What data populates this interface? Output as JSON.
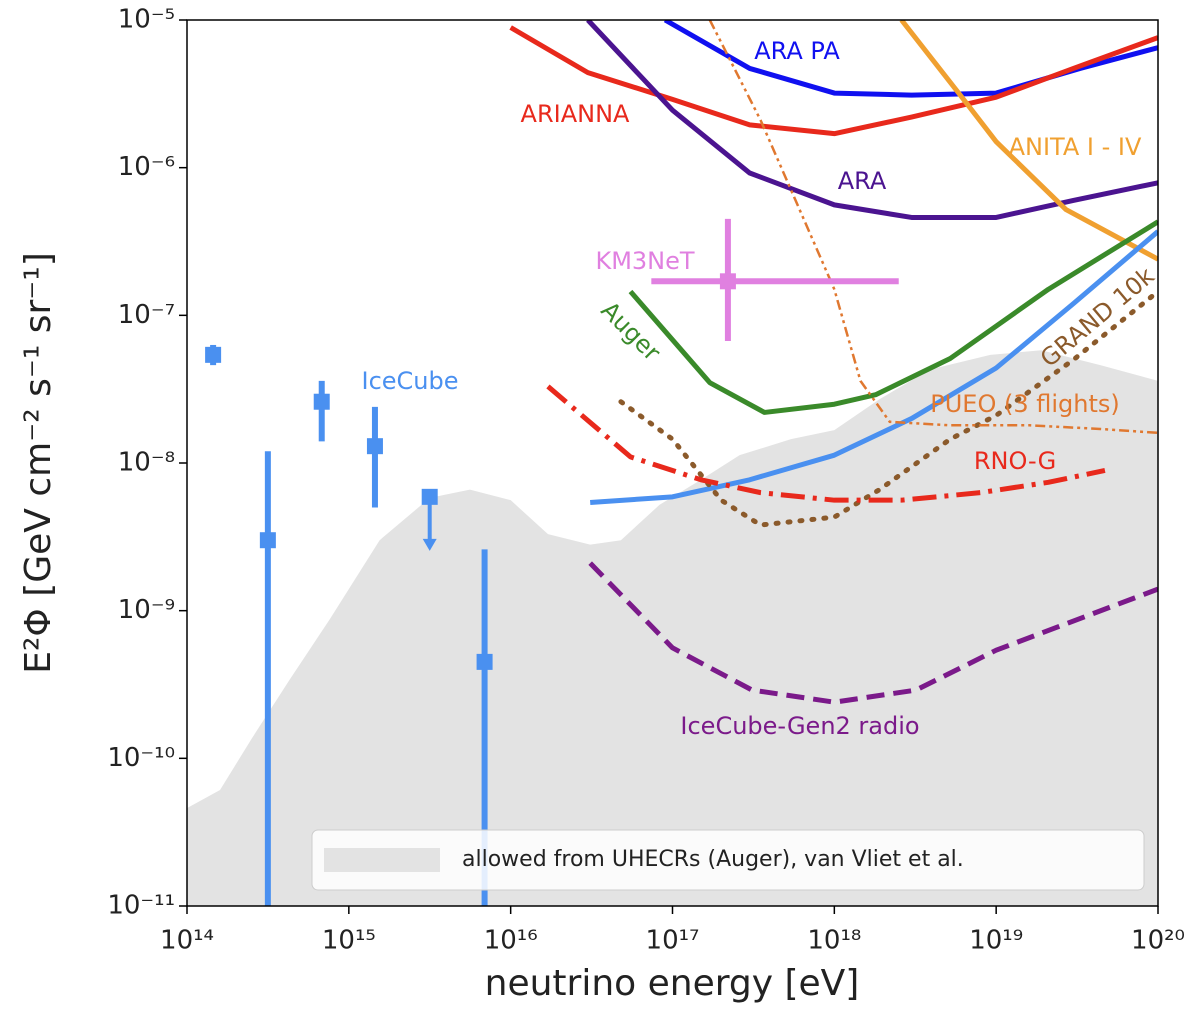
{
  "chart_data": {
    "type": "line",
    "xlabel": "neutrino energy [eV]",
    "ylabel": "E²Φ [GeV cm⁻² s⁻¹ sr⁻¹]",
    "xlog": true,
    "ylog": true,
    "xlim": [
      100000000000000.0,
      1e+20
    ],
    "ylim": [
      1e-11,
      1e-05
    ],
    "xticks": [
      {
        "value": 100000000000000.0,
        "label": "10¹⁴"
      },
      {
        "value": 1000000000000000.0,
        "label": "10¹⁵"
      },
      {
        "value": 1e+16,
        "label": "10¹⁶"
      },
      {
        "value": 1e+17,
        "label": "10¹⁷"
      },
      {
        "value": 1e+18,
        "label": "10¹⁸"
      },
      {
        "value": 1e+19,
        "label": "10¹⁹"
      },
      {
        "value": 1e+20,
        "label": "10²⁰"
      }
    ],
    "yticks": [
      {
        "value": 1e-11,
        "label": "10⁻¹¹"
      },
      {
        "value": 1e-10,
        "label": "10⁻¹⁰"
      },
      {
        "value": 1e-09,
        "label": "10⁻⁹"
      },
      {
        "value": 1e-08,
        "label": "10⁻⁸"
      },
      {
        "value": 1e-07,
        "label": "10⁻⁷"
      },
      {
        "value": 1e-06,
        "label": "10⁻⁶"
      },
      {
        "value": 1e-05,
        "label": "10⁻⁵"
      }
    ],
    "legend": "lower right",
    "series": [
      {
        "name": "allowed from UHECRs (Auger), van Vliet et al.",
        "color": "#e3e3e3",
        "style": "area",
        "x": [
          100000000000000.0,
          160000000000000.0,
          250000000000000.0,
          430000000000000.0,
          760000000000000.0,
          1550000000000000.0,
          3160000000000000.0,
          5600000000000000.0,
          1e+16,
          1.7e+16,
          3.1e+16,
          4.8e+16,
          8.3e+16,
          1.5e+17,
          2.6e+17,
          5.4e+17,
          1e+18,
          1.9e+18,
          3.9e+18,
          9.2e+18,
          1.9e+19,
          4.4e+19,
          1e+20
        ],
        "values": [
          4.6e-11,
          6.1e-11,
          1.35e-10,
          3.4e-10,
          8.7e-10,
          3e-09,
          5.8e-09,
          6.6e-09,
          5.6e-09,
          3.3e-09,
          2.8e-09,
          3e-09,
          5.2e-09,
          7.7e-09,
          1.13e-08,
          1.45e-08,
          1.67e-08,
          2.7e-08,
          4.3e-08,
          5.4e-08,
          5.8e-08,
          4.6e-08,
          3.6e-08
        ]
      },
      {
        "name": "ARA PA",
        "color": "#1010f0",
        "style": "solid",
        "x": [
          9e+16,
          3e+17,
          1e+18,
          3e+18,
          1e+19,
          3.3e+19,
          1e+20
        ],
        "values": [
          1e-05,
          4.7e-06,
          3.2e-06,
          3.1e-06,
          3.2e-06,
          4.7e-06,
          6.5e-06
        ]
      },
      {
        "name": "ARIANNA",
        "color": "#e8291c",
        "style": "solid",
        "x": [
          1e+16,
          3e+16,
          1e+17,
          3e+17,
          1e+18,
          3e+18,
          1e+19,
          3e+19,
          1e+20
        ],
        "values": [
          8.9e-06,
          4.4e-06,
          2.9e-06,
          1.95e-06,
          1.7e-06,
          2.2e-06,
          3e-06,
          4.7e-06,
          7.6e-06
        ]
      },
      {
        "name": "ARA",
        "color": "#4b1490",
        "style": "solid",
        "x": [
          3e+16,
          1e+17,
          3e+17,
          1e+18,
          3e+18,
          1e+19,
          3e+19,
          1e+20
        ],
        "values": [
          1e-05,
          2.45e-06,
          9.2e-07,
          5.6e-07,
          4.6e-07,
          4.6e-07,
          6e-07,
          7.9e-07
        ]
      },
      {
        "name": "ANITA I - IV",
        "color": "#f0a030",
        "style": "solid",
        "x": [
          2.6e+18,
          6e+18,
          1e+19,
          2.7e+19,
          1e+20
        ],
        "values": [
          1e-05,
          3.1e-06,
          1.5e-06,
          5.2e-07,
          2.4e-07
        ]
      },
      {
        "name": "Auger",
        "color": "#3a8a2a",
        "style": "solid",
        "x": [
          5.5e+16,
          1.7e+17,
          3.7e+17,
          1e+18,
          1.8e+18,
          5.2e+18,
          2.1e+19,
          1e+20
        ],
        "values": [
          1.45e-07,
          3.5e-08,
          2.2e-08,
          2.5e-08,
          2.9e-08,
          5.1e-08,
          1.5e-07,
          4.3e-07
        ]
      },
      {
        "color": "#4a90f0",
        "style": "solid",
        "x": [
          3.1e+16,
          1e+17,
          3e+17,
          1e+18,
          3e+18,
          1e+19,
          3e+19,
          1e+20
        ],
        "values": [
          5.4e-09,
          5.9e-09,
          7.7e-09,
          1.13e-08,
          2e-08,
          4.4e-08,
          1.2e-07,
          3.7e-07
        ]
      },
      {
        "name": "GRAND 10k",
        "color": "#8b5a2b",
        "style": "dotted",
        "x": [
          4.8e+16,
          1e+17,
          2e+17,
          3.5e+17,
          1e+18,
          1.9e+18,
          5.2e+18,
          1e+19,
          3e+19,
          1e+20
        ],
        "values": [
          2.6e-08,
          1.45e-08,
          5.6e-09,
          3.8e-09,
          4.3e-09,
          6.6e-09,
          1.45e-08,
          2.1e-08,
          5e-08,
          1.45e-07
        ]
      },
      {
        "name": "RNO-G",
        "color": "#e8291c",
        "style": "dashdot",
        "x": [
          1.7e+16,
          5.5e+16,
          1.5e+17,
          3.5e+17,
          1e+18,
          2.6e+18,
          8e+18,
          2.1e+19,
          4.7e+19
        ],
        "values": [
          3.3e-08,
          1.1e-08,
          7.7e-09,
          6.3e-09,
          5.6e-09,
          5.6e-09,
          6.3e-09,
          7.4e-09,
          8.9e-09
        ]
      },
      {
        "name": "PUEO (3 flights)",
        "color": "#e07830",
        "style": "dashdotdot",
        "x": [
          1.7e+17,
          3.5e+17,
          6.1e+17,
          1e+18,
          1.45e+18,
          2.2e+18,
          5.2e+18,
          1.6e+19,
          4.4e+19,
          1e+20
        ],
        "values": [
          1e-05,
          2.1e-06,
          5.2e-07,
          1.5e-07,
          3.6e-08,
          1.9e-08,
          1.8e-08,
          1.8e-08,
          1.7e-08,
          1.6e-08
        ]
      },
      {
        "name": "IceCube-Gen2 radio",
        "color": "#7b1a8a",
        "style": "dashed",
        "x": [
          3.1e+16,
          1e+17,
          3.1e+17,
          1e+18,
          3.2e+18,
          1e+19,
          1e+20
        ],
        "values": [
          2.1e-09,
          5.6e-10,
          2.9e-10,
          2.4e-10,
          2.9e-10,
          5.4e-10,
          1.4e-09
        ]
      },
      {
        "name": "KM3NeT",
        "color": "#e080e0",
        "style": "point",
        "x": [
          2.2e+17
        ],
        "values": [
          1.7e-07
        ],
        "x_low": [
          7.4e+16
        ],
        "x_high": [
          2.5e+18
        ],
        "y_low": [
          6.7e-08
        ],
        "y_high": [
          4.5e-07
        ]
      },
      {
        "name": "IceCube",
        "color": "#4a90f0",
        "style": "point",
        "x": [
          145000000000000.0,
          316000000000000.0,
          680000000000000.0,
          1450000000000000.0,
          6900000000000000.0
        ],
        "values": [
          5.4e-08,
          3e-09,
          2.6e-08,
          1.3e-08,
          4.5e-10
        ],
        "y_low": [
          4.6e-08,
          1e-11,
          1.4e-08,
          5e-09,
          1e-11
        ],
        "y_high": [
          6.3e-08,
          1.2e-08,
          3.6e-08,
          2.4e-08,
          2.6e-09
        ],
        "upper_limit_x": [
          3160000000000000.0
        ],
        "upper_limit_values": [
          5.9e-09
        ]
      }
    ]
  }
}
